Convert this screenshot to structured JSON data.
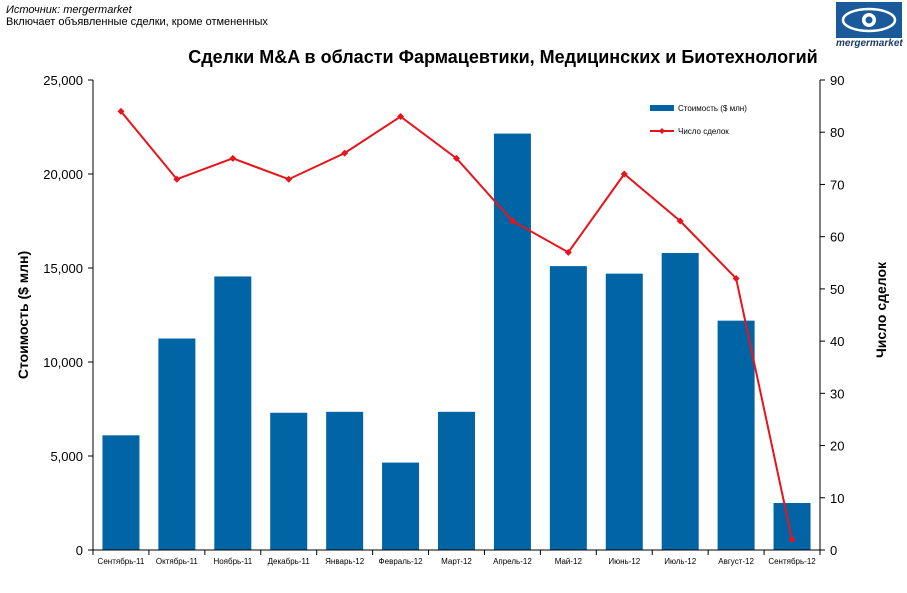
{
  "source": {
    "line1": "Источник: mergermarket",
    "line2": "Включает объявленные сделки, кроме отмененных"
  },
  "logo": {
    "text": "mergermarket",
    "icon": "eye-logo-icon"
  },
  "colors": {
    "bar": "#0064a5",
    "line": "#e8141b",
    "axis": "#000000"
  },
  "chart_data": {
    "type": "bar",
    "title": "Сделки M&A в области Фармацевтики, Медицинских и Биотехнологий",
    "categories": [
      "Сентябрь-11",
      "Октябрь-11",
      "Ноябрь-11",
      "Декабрь-11",
      "Январь-12",
      "Февраль-12",
      "Март-12",
      "Апрель-12",
      "Май-12",
      "Июнь-12",
      "Июль-12",
      "Август-12",
      "Сентябрь-12"
    ],
    "ylabel": "Стоимость ($ млн)",
    "y2label": "Число сделок",
    "ylim": [
      0,
      25000
    ],
    "y2lim": [
      0,
      90
    ],
    "yticks": [
      "0",
      "5,000",
      "10,000",
      "15,000",
      "20,000",
      "25,000"
    ],
    "y2ticks": [
      "0",
      "10",
      "20",
      "30",
      "40",
      "50",
      "60",
      "70",
      "80",
      "90"
    ],
    "series": [
      {
        "name": "Стоимость  ($ млн)",
        "kind": "bar",
        "axis": "left",
        "values": [
          6100,
          11250,
          14550,
          7300,
          7350,
          4650,
          7350,
          22150,
          15100,
          14700,
          15800,
          12200,
          2500
        ]
      },
      {
        "name": "Число сделок",
        "kind": "line",
        "axis": "right",
        "values": [
          84,
          71,
          75,
          71,
          76,
          83,
          75,
          63,
          57,
          72,
          63,
          52,
          2
        ]
      }
    ],
    "legend_position": "top-right",
    "grid": false
  }
}
